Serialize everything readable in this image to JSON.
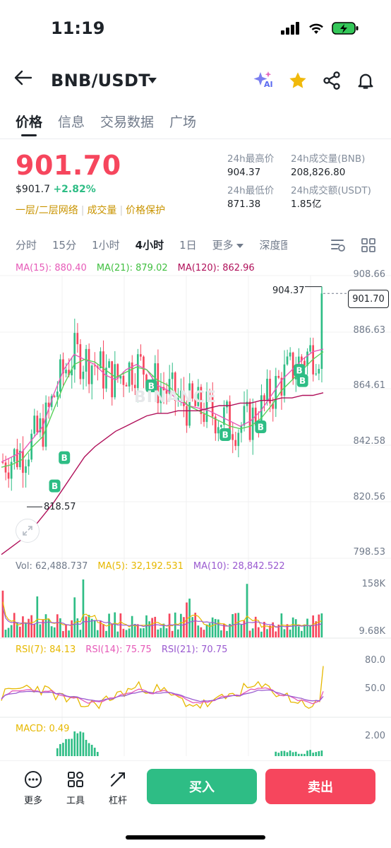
{
  "status_bar": {
    "time": "11:19"
  },
  "header": {
    "pair": "BNB/USDT",
    "ai_label": "AI"
  },
  "tabs": [
    "价格",
    "信息",
    "交易数据",
    "广场"
  ],
  "ticker": {
    "price": "901.70",
    "usd_price": "$901.7",
    "change_pct": "+2.82%",
    "links": [
      "一层/二层网络",
      "成交量",
      "价格保护"
    ],
    "high_label": "24h最高价",
    "high": "904.37",
    "low_label": "24h最低价",
    "low": "871.38",
    "vol_bnb_label": "24h成交量(BNB)",
    "vol_bnb": "208,826.80",
    "vol_usdt_label": "24h成交额(USDT)",
    "vol_usdt": "1.85亿"
  },
  "intervals": [
    "分时",
    "15分",
    "1小时",
    "4小时",
    "1日",
    "更多",
    "深度图"
  ],
  "active_interval": "4小时",
  "colors": {
    "up": "#2ebd85",
    "down": "#f6465d",
    "accent": "#f0b90b"
  },
  "chart_data": [
    {
      "type": "line",
      "title": "",
      "legend": [
        {
          "name": "MA(15)",
          "value": "880.40",
          "color": "#e65ab8"
        },
        {
          "name": "MA(21)",
          "value": "879.02",
          "color": "#5ad15a"
        },
        {
          "name": "MA(120)",
          "value": "862.96",
          "color": "#b0105a"
        }
      ],
      "ylim": [
        798.53,
        908.66
      ],
      "y_ticks": [
        "908.66",
        "886.63",
        "864.61",
        "842.58",
        "820.56",
        "798.53"
      ],
      "current_price": "901.70",
      "high_marker": "904.37",
      "low_marker": "818.57",
      "watermark": "BINANCE",
      "buy_markers": [
        "B",
        "B",
        "B",
        "B",
        "B",
        "B",
        "B"
      ],
      "series": [
        {
          "name": "MA(15)",
          "values": [
            836,
            838,
            840,
            845,
            850,
            862,
            872,
            878,
            876,
            874,
            870,
            868,
            872,
            874,
            872,
            866,
            864,
            860,
            858,
            857,
            856,
            854,
            852,
            850,
            852,
            856,
            862,
            868,
            872,
            876,
            879,
            880
          ]
        },
        {
          "name": "MA(21)",
          "values": [
            834,
            835,
            837,
            842,
            846,
            856,
            866,
            874,
            876,
            875,
            872,
            869,
            871,
            873,
            872,
            868,
            866,
            862,
            858,
            856,
            854,
            852,
            850,
            849,
            850,
            853,
            858,
            864,
            868,
            872,
            876,
            879
          ]
        },
        {
          "name": "MA(120)",
          "values": [
            800,
            803,
            806,
            810,
            815,
            820,
            826,
            832,
            838,
            842,
            845,
            848,
            850,
            852,
            854,
            855,
            855,
            856,
            856,
            856,
            857,
            858,
            858,
            859,
            859,
            860,
            860,
            861,
            861,
            862,
            862,
            863
          ]
        }
      ]
    },
    {
      "type": "bar",
      "legend": [
        {
          "name": "Vol",
          "value": "62,488.737",
          "color": "#707a8a"
        },
        {
          "name": "MA(5)",
          "value": "32,192.531",
          "color": "#e6b800"
        },
        {
          "name": "MA(10)",
          "value": "28,842.522",
          "color": "#9a5ad0"
        }
      ],
      "y_ticks": [
        "158K",
        "9.68K"
      ]
    },
    {
      "type": "line",
      "legend": [
        {
          "name": "RSI(7)",
          "value": "84.13",
          "color": "#e6b800"
        },
        {
          "name": "RSI(14)",
          "value": "75.75",
          "color": "#e65ab8"
        },
        {
          "name": "RSI(21)",
          "value": "70.75",
          "color": "#9a5ad0"
        }
      ],
      "y_ticks": [
        "80.0",
        "50.0"
      ]
    },
    {
      "type": "bar",
      "legend": [
        {
          "name": "MACD",
          "value": "0.49",
          "color": "#e6b800"
        }
      ],
      "y_ticks": [
        "2.00"
      ]
    }
  ],
  "bottom": {
    "items": [
      "更多",
      "工具",
      "杠杆"
    ],
    "buy": "买入",
    "sell": "卖出"
  }
}
